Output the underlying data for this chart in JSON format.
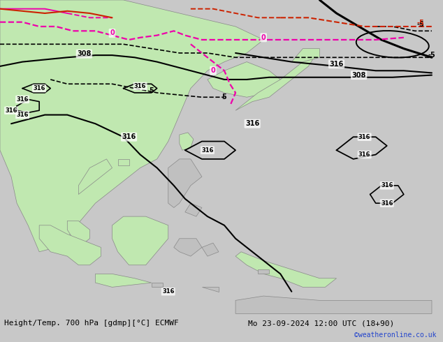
{
  "title_left": "Height/Temp. 700 hPa [gdmp][°C] ECMWF",
  "title_right": "Mo 23-09-2024 12:00 UTC (18+90)",
  "credit": "©weatheronline.co.uk",
  "background_ocean": "#c8c8c8",
  "land_green": "#c0e8b0",
  "land_gray": "#c0c0c0",
  "black": "#000000",
  "magenta": "#ee00aa",
  "red": "#cc2200",
  "credit_color": "#2244cc",
  "dpi": 100,
  "fig_w": 6.34,
  "fig_h": 4.9,
  "lon_min": 88,
  "lon_max": 167,
  "lat_min": -16,
  "lat_max": 56
}
